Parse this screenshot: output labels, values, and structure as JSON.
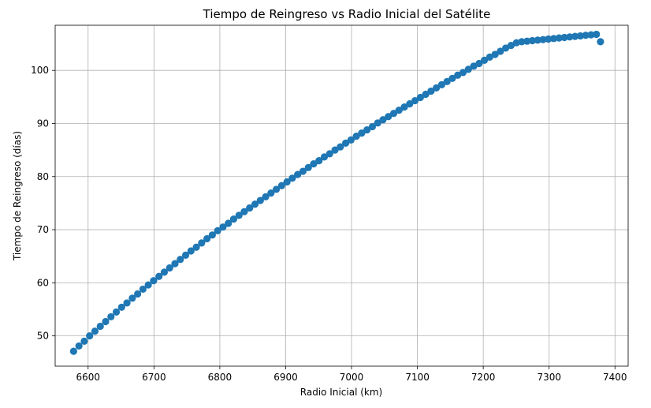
{
  "chart_data": {
    "type": "scatter",
    "title": "Tiempo de Reingreso vs Radio Inicial del Satélite",
    "xlabel": "Radio Inicial (km)",
    "ylabel": "Tiempo de Reingreso (días)",
    "xlim": [
      6550,
      7420
    ],
    "ylim": [
      44.3,
      108.5
    ],
    "xticks": [
      6600,
      6700,
      6800,
      6900,
      7000,
      7100,
      7200,
      7300,
      7400
    ],
    "yticks": [
      50,
      60,
      70,
      80,
      90,
      100
    ],
    "grid": true,
    "series": [
      {
        "color": "#1f77b4",
        "marker": "circle",
        "x": [
          6578,
          6586.1,
          6594.2,
          6602.3,
          6610.4,
          6618.5,
          6626.6,
          6634.7,
          6642.8,
          6650.9,
          6659,
          6667.1,
          6675.2,
          6683.3,
          6691.4,
          6699.5,
          6707.6,
          6715.7,
          6723.8,
          6731.9,
          6740,
          6748.1,
          6756.2,
          6764.3,
          6772.4,
          6780.5,
          6788.6,
          6796.7,
          6804.8,
          6812.9,
          6821,
          6829.1,
          6837.2,
          6845.3,
          6853.4,
          6861.5,
          6869.6,
          6877.7,
          6885.8,
          6893.9,
          6902,
          6910.1,
          6918.2,
          6926.3,
          6934.4,
          6942.5,
          6950.6,
          6958.7,
          6966.8,
          6974.9,
          6983,
          6991.1,
          6999.2,
          7007.3,
          7015.4,
          7023.5,
          7031.6,
          7039.7,
          7047.8,
          7055.9,
          7064,
          7072.1,
          7080.2,
          7088.3,
          7096.4,
          7104.5,
          7112.6,
          7120.7,
          7128.8,
          7136.9,
          7145,
          7153.1,
          7161.2,
          7169.3,
          7177.4,
          7185.5,
          7193.6,
          7201.7,
          7209.8,
          7217.9,
          7226,
          7234.1,
          7242.2,
          7250.3,
          7258.4,
          7266.5,
          7274.6,
          7282.7,
          7290.8,
          7298.9,
          7307,
          7315.1,
          7323.2,
          7331.3,
          7339.4,
          7347.5,
          7355.6,
          7363.7,
          7371.8,
          7378
        ],
        "y": [
          47.1,
          48.1,
          49.0,
          50.0,
          50.9,
          51.8,
          52.7,
          53.6,
          54.5,
          55.4,
          56.2,
          57.1,
          57.9,
          58.8,
          59.6,
          60.4,
          61.2,
          62.0,
          62.8,
          63.6,
          64.4,
          65.2,
          66.0,
          66.7,
          67.5,
          68.3,
          69.0,
          69.8,
          70.5,
          71.2,
          72.0,
          72.7,
          73.4,
          74.1,
          74.8,
          75.5,
          76.2,
          76.9,
          77.6,
          78.3,
          79.0,
          79.7,
          80.4,
          81.0,
          81.7,
          82.4,
          83.0,
          83.7,
          84.3,
          85.0,
          85.6,
          86.3,
          86.9,
          87.6,
          88.2,
          88.8,
          89.4,
          90.1,
          90.7,
          91.3,
          91.9,
          92.5,
          93.1,
          93.7,
          94.3,
          94.9,
          95.5,
          96.1,
          96.7,
          97.3,
          97.9,
          98.5,
          99.1,
          99.6,
          100.2,
          100.8,
          101.3,
          101.9,
          102.5,
          103.0,
          103.6,
          104.2,
          104.7,
          105.2,
          105.4,
          105.5,
          105.6,
          105.7,
          105.8,
          105.9,
          106.0,
          106.1,
          106.2,
          106.3,
          106.4,
          106.5,
          106.6,
          106.7,
          106.8,
          105.4
        ]
      }
    ]
  }
}
